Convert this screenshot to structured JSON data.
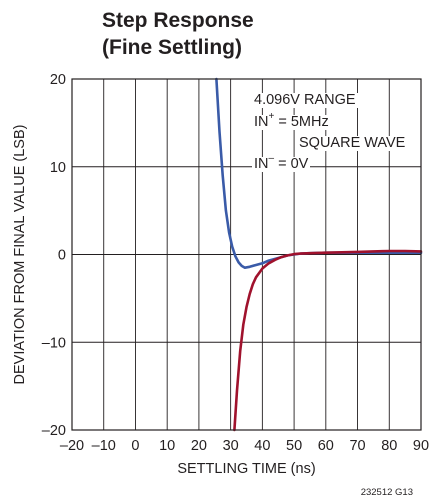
{
  "chart_data": {
    "type": "line",
    "title": "Step Response",
    "subtitle": "(Fine Settling)",
    "xlabel": "SETTLING TIME (ns)",
    "ylabel": "DEVIATION FROM FINAL VALUE (LSB)",
    "xlim": [
      -20,
      90
    ],
    "ylim": [
      -20,
      20
    ],
    "x_ticks": [
      -20,
      -10,
      0,
      10,
      20,
      30,
      40,
      50,
      60,
      70,
      80,
      90
    ],
    "x_tick_labels": [
      "–20",
      "–10",
      "0",
      "10",
      "20",
      "30",
      "40",
      "50",
      "60",
      "70",
      "80",
      "90"
    ],
    "y_ticks": [
      -20,
      -10,
      0,
      10,
      20
    ],
    "y_tick_labels": [
      "–20",
      "–10",
      "0",
      "10",
      "20"
    ],
    "grid": true,
    "annotation": {
      "line1": "4.096V RANGE",
      "in_plus_prefix": "IN",
      "in_plus_sup": "+",
      "in_plus_value": " = 5MHz",
      "line3": "SQUARE WAVE",
      "in_minus_prefix": "IN",
      "in_minus_sup": "–",
      "in_minus_value": " = 0V"
    },
    "figure_id": "232512 G13",
    "series": [
      {
        "color": "#3a5ba8",
        "x": [
          25.5,
          26.5,
          27.5,
          28.5,
          29.5,
          30.5,
          31.5,
          32.5,
          33.5,
          34.5,
          36,
          38,
          40,
          42,
          44,
          46,
          48,
          50,
          52,
          55,
          60,
          65,
          70,
          75,
          80,
          85,
          90
        ],
        "y": [
          20,
          14,
          9,
          5,
          2.5,
          0.9,
          -0.2,
          -0.9,
          -1.3,
          -1.5,
          -1.4,
          -1.2,
          -1.0,
          -0.7,
          -0.5,
          -0.3,
          -0.1,
          0.0,
          0.1,
          0.15,
          0.2,
          0.2,
          0.2,
          0.2,
          0.2,
          0.2,
          0.2
        ]
      },
      {
        "color": "#a0122d",
        "x": [
          31.2,
          32,
          33,
          34,
          35,
          36,
          37,
          38,
          40,
          42,
          44,
          46,
          48,
          50,
          52,
          55,
          60,
          65,
          70,
          75,
          80,
          85,
          90
        ],
        "y": [
          -20,
          -15.5,
          -11,
          -8,
          -6,
          -4.5,
          -3.4,
          -2.6,
          -1.6,
          -1.0,
          -0.6,
          -0.3,
          -0.1,
          0.05,
          0.1,
          0.15,
          0.2,
          0.25,
          0.3,
          0.35,
          0.4,
          0.4,
          0.35
        ]
      }
    ]
  }
}
